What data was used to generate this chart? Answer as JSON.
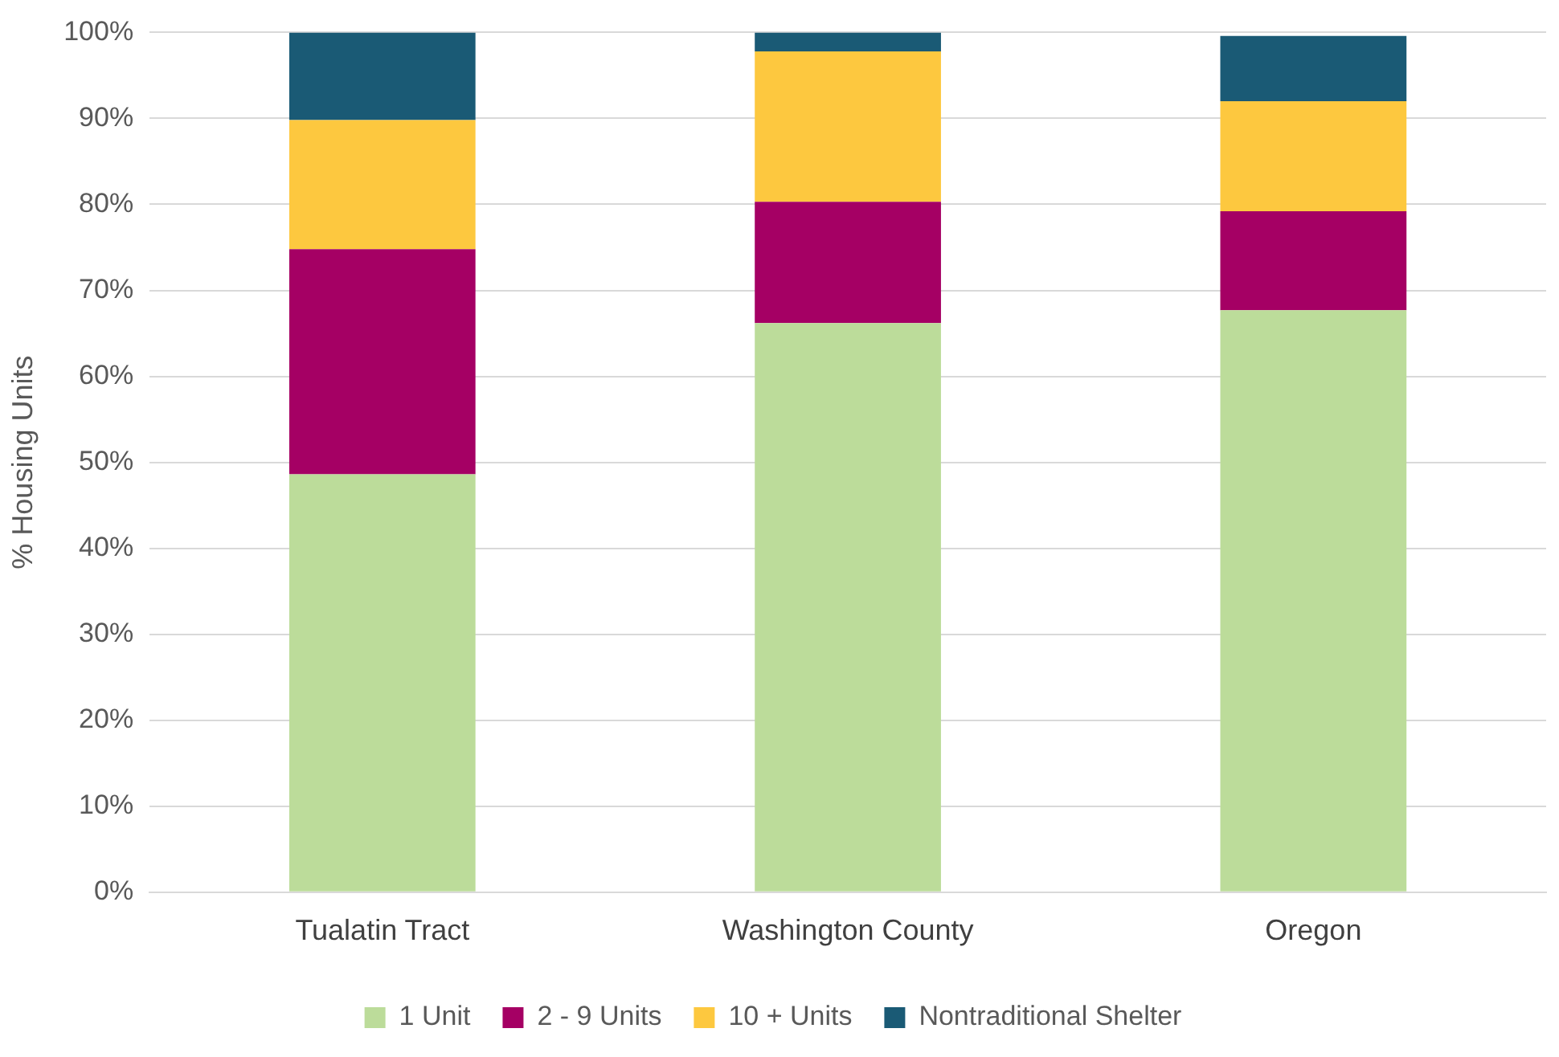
{
  "chart_data": {
    "type": "bar",
    "stacked": true,
    "ylabel": "% Housing Units",
    "categories": [
      "Tualatin Tract",
      "Washington County",
      "Oregon"
    ],
    "series": [
      {
        "name": "1 Unit",
        "color": "#bcdc9a",
        "values": [
          48.6,
          66.2,
          67.7
        ]
      },
      {
        "name": "2 - 9 Units",
        "color": "#a50064",
        "values": [
          26.2,
          14.1,
          11.5
        ]
      },
      {
        "name": "10 + Units",
        "color": "#fdc83f",
        "values": [
          15,
          17.5,
          12.8
        ]
      },
      {
        "name": "Nontraditional Shelter",
        "color": "#1a5a75",
        "values": [
          10.2,
          2.2,
          7.6
        ]
      }
    ],
    "ylim": [
      0,
      100
    ],
    "yticks": [
      {
        "value": 0,
        "label": "0%"
      },
      {
        "value": 10,
        "label": "10%"
      },
      {
        "value": 20,
        "label": "20%"
      },
      {
        "value": 30,
        "label": "30%"
      },
      {
        "value": 40,
        "label": "40%"
      },
      {
        "value": 50,
        "label": "50%"
      },
      {
        "value": 60,
        "label": "60%"
      },
      {
        "value": 70,
        "label": "70%"
      },
      {
        "value": 80,
        "label": "80%"
      },
      {
        "value": 90,
        "label": "90%"
      },
      {
        "value": 100,
        "label": "100%"
      }
    ],
    "grid": "y",
    "legend": "bottom"
  }
}
